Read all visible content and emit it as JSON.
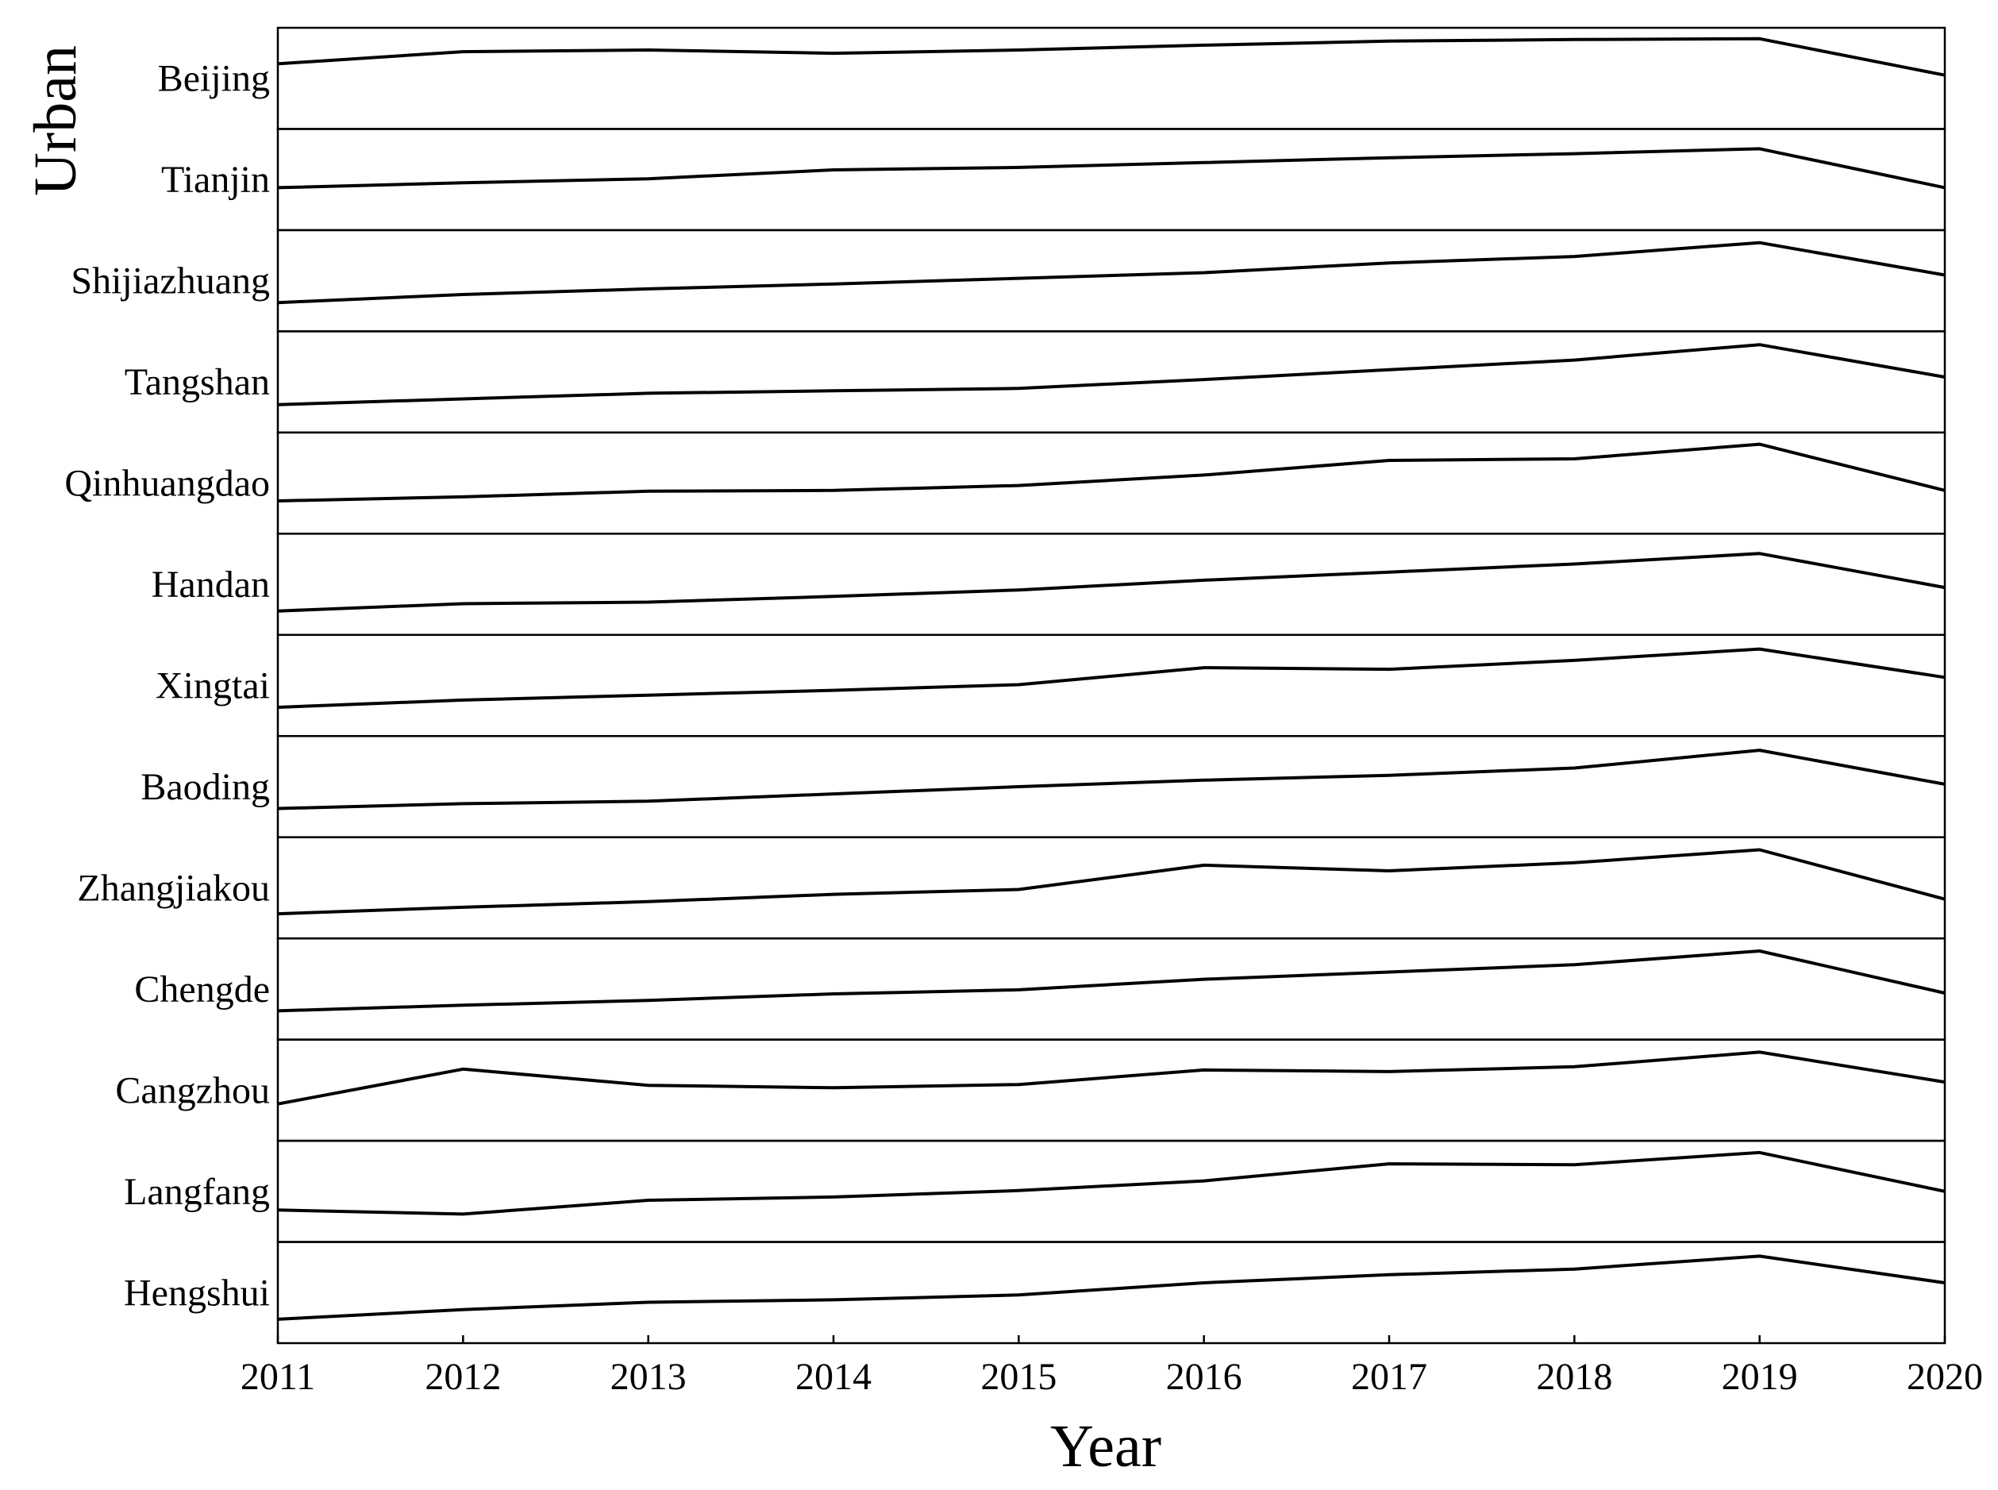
{
  "chart_data": {
    "type": "line",
    "layout": "small-multiples",
    "xlabel": "Year",
    "ylabel": "Urban",
    "grid": false,
    "legend": "none",
    "x": [
      2011,
      2012,
      2013,
      2014,
      2015,
      2016,
      2017,
      2018,
      2019,
      2020
    ],
    "series_ylim": [
      0,
      1
    ],
    "series": [
      {
        "name": "Beijing",
        "values": [
          0.68,
          0.83,
          0.85,
          0.81,
          0.85,
          0.91,
          0.96,
          0.98,
          0.99,
          0.54
        ]
      },
      {
        "name": "Tianjin",
        "values": [
          0.4,
          0.46,
          0.51,
          0.62,
          0.65,
          0.71,
          0.77,
          0.82,
          0.88,
          0.4
        ]
      },
      {
        "name": "Shijiazhuang",
        "values": [
          0.23,
          0.33,
          0.4,
          0.46,
          0.53,
          0.6,
          0.72,
          0.8,
          0.97,
          0.57
        ]
      },
      {
        "name": "Tangshan",
        "values": [
          0.22,
          0.29,
          0.36,
          0.39,
          0.42,
          0.53,
          0.65,
          0.77,
          0.96,
          0.56
        ]
      },
      {
        "name": "Qinhuangdao",
        "values": [
          0.28,
          0.33,
          0.4,
          0.41,
          0.47,
          0.6,
          0.78,
          0.8,
          0.98,
          0.41
        ]
      },
      {
        "name": "Handan",
        "values": [
          0.17,
          0.26,
          0.28,
          0.35,
          0.43,
          0.55,
          0.65,
          0.75,
          0.88,
          0.46
        ]
      },
      {
        "name": "Xingtai",
        "values": [
          0.23,
          0.32,
          0.38,
          0.44,
          0.51,
          0.72,
          0.7,
          0.81,
          0.95,
          0.6
        ]
      },
      {
        "name": "Baoding",
        "values": [
          0.23,
          0.29,
          0.32,
          0.41,
          0.5,
          0.58,
          0.64,
          0.73,
          0.95,
          0.53
        ]
      },
      {
        "name": "Zhangjiakou",
        "values": [
          0.18,
          0.26,
          0.33,
          0.42,
          0.48,
          0.78,
          0.71,
          0.81,
          0.97,
          0.36
        ]
      },
      {
        "name": "Chengde",
        "values": [
          0.23,
          0.3,
          0.36,
          0.44,
          0.49,
          0.62,
          0.71,
          0.8,
          0.97,
          0.45
        ]
      },
      {
        "name": "Cangzhou",
        "values": [
          0.33,
          0.76,
          0.56,
          0.53,
          0.57,
          0.75,
          0.73,
          0.79,
          0.97,
          0.6
        ]
      },
      {
        "name": "Langfang",
        "values": [
          0.27,
          0.22,
          0.39,
          0.43,
          0.51,
          0.63,
          0.84,
          0.83,
          0.98,
          0.5
        ]
      },
      {
        "name": "Hengshui",
        "values": [
          0.17,
          0.29,
          0.38,
          0.41,
          0.47,
          0.62,
          0.72,
          0.79,
          0.95,
          0.62
        ]
      }
    ]
  },
  "colors": {
    "line": "#000000",
    "frame": "#000000",
    "background": "#ffffff"
  }
}
